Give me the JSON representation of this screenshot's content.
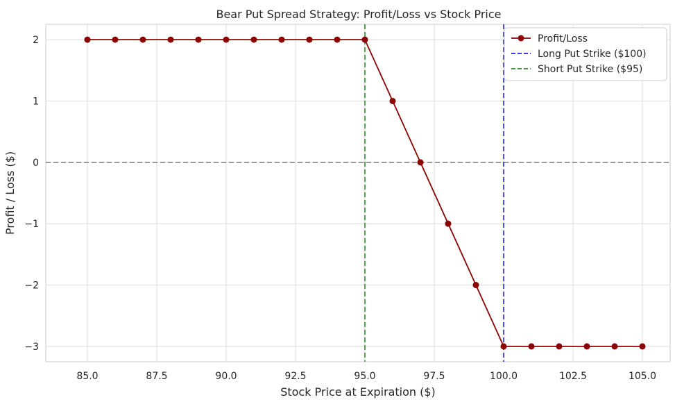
{
  "chart_data": {
    "type": "line",
    "title": "Bear Put Spread Strategy: Profit/Loss vs Stock Price",
    "xlabel": "Stock Price at Expiration ($)",
    "ylabel": "Profit / Loss ($)",
    "xlim": [
      83.5,
      106
    ],
    "ylim": [
      -3.25,
      2.25
    ],
    "xticks": [
      85,
      87.5,
      90,
      92.5,
      95,
      97.5,
      100,
      102.5,
      105
    ],
    "xtick_labels": [
      "85.0",
      "87.5",
      "90.0",
      "92.5",
      "95.0",
      "97.5",
      "100.0",
      "102.5",
      "105.0"
    ],
    "yticks": [
      2,
      1,
      0,
      -1,
      -2,
      -3
    ],
    "ytick_labels": [
      "2",
      "1",
      "0",
      "−1",
      "−2",
      "−3"
    ],
    "grid": true,
    "legend_position": "top-right",
    "series": [
      {
        "name": "Profit/Loss",
        "color": "#8b0000",
        "marker": "circle",
        "x": [
          85,
          86,
          87,
          88,
          89,
          90,
          91,
          92,
          93,
          94,
          95,
          96,
          97,
          98,
          99,
          100,
          101,
          102,
          103,
          104,
          105
        ],
        "y": [
          2,
          2,
          2,
          2,
          2,
          2,
          2,
          2,
          2,
          2,
          2,
          1,
          0,
          -1,
          -2,
          -3,
          -3,
          -3,
          -3,
          -3,
          -3
        ]
      }
    ],
    "vertical_lines": [
      {
        "name": "Long Put Strike ($100)",
        "x": 100,
        "color": "#2020e0",
        "style": "dashed"
      },
      {
        "name": "Short Put Strike ($95)",
        "x": 95,
        "color": "#2e8b2e",
        "style": "dashed"
      }
    ],
    "horizontal_lines": [
      {
        "y": 0,
        "color": "#808080",
        "style": "dashed"
      }
    ]
  }
}
